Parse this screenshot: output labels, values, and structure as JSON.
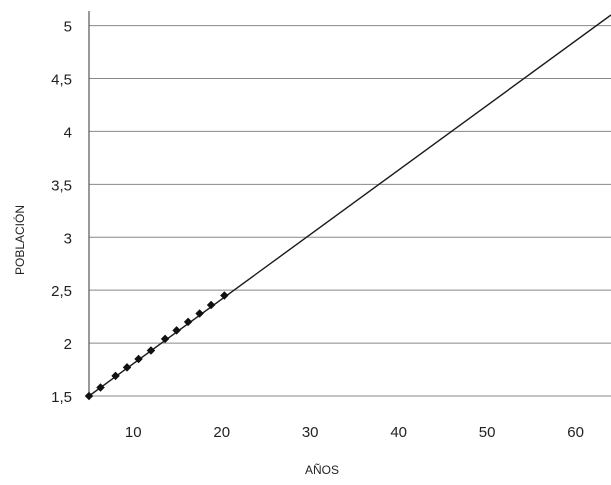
{
  "chart_data": {
    "type": "line",
    "title": "",
    "xlabel": "AÑOS",
    "ylabel": "POBLACIÓN",
    "xlim": [
      5,
      64
    ],
    "ylim": [
      1.5,
      5.1
    ],
    "grid": "horizontal",
    "legend": "none",
    "colors": {
      "line": "#1a1a1a",
      "points": "#111111",
      "grid": "#888888",
      "axis": "#555555"
    },
    "x_ticks": [
      {
        "value": 10,
        "label": "10"
      },
      {
        "value": 20,
        "label": "20"
      },
      {
        "value": 30,
        "label": "30"
      },
      {
        "value": 40,
        "label": "40"
      },
      {
        "value": 50,
        "label": "50"
      },
      {
        "value": 60,
        "label": "60"
      }
    ],
    "y_ticks": [
      {
        "value": 1.5,
        "label": "1,5"
      },
      {
        "value": 2,
        "label": "2"
      },
      {
        "value": 2.5,
        "label": "2,5"
      },
      {
        "value": 3,
        "label": "3"
      },
      {
        "value": 3.5,
        "label": "3,5"
      },
      {
        "value": 4,
        "label": "4"
      },
      {
        "value": 4.5,
        "label": "4,5"
      },
      {
        "value": 5,
        "label": "5"
      }
    ],
    "series": [
      {
        "kind": "line",
        "x": [
          5,
          64
        ],
        "y": [
          1.5,
          5.1
        ]
      },
      {
        "kind": "scatter",
        "x": [
          5,
          6.3,
          8,
          9.3,
          10.6,
          12,
          13.6,
          14.9,
          16.2,
          17.5,
          18.8,
          20.3
        ],
        "y": [
          1.5,
          1.58,
          1.69,
          1.77,
          1.85,
          1.93,
          2.04,
          2.12,
          2.2,
          2.28,
          2.36,
          2.45
        ]
      }
    ]
  }
}
